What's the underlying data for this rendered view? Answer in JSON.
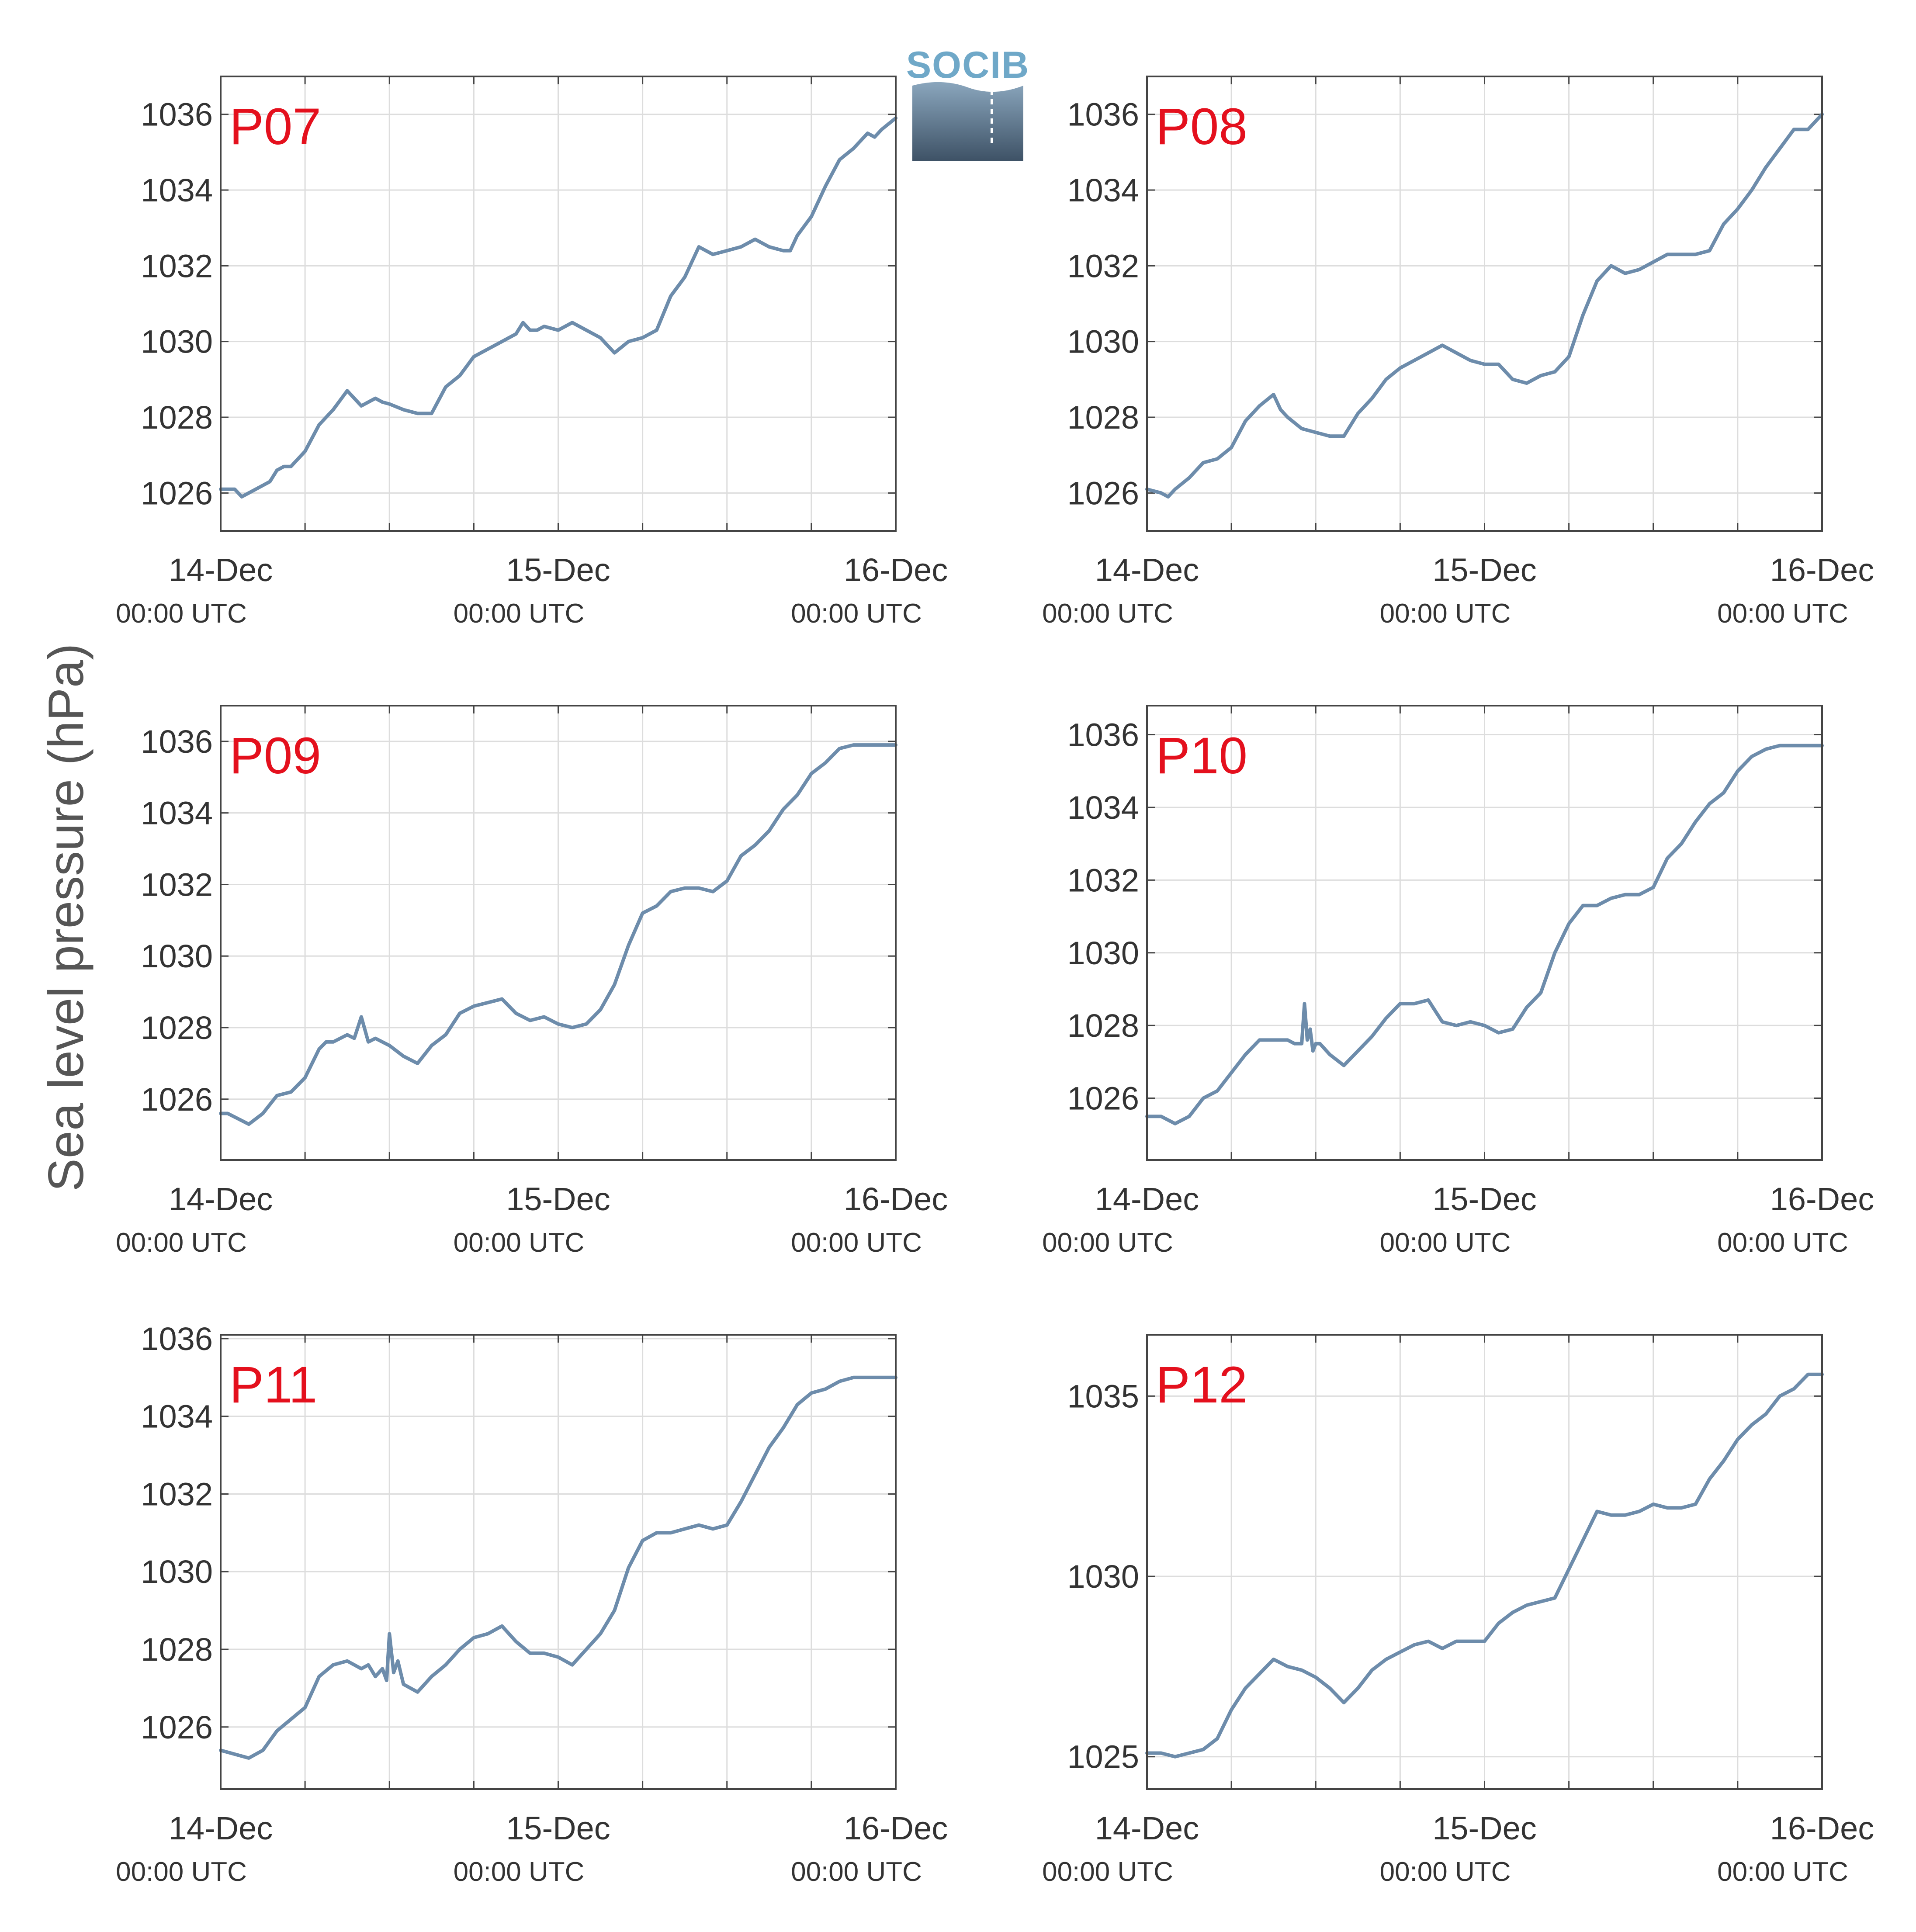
{
  "figure": {
    "ylabel": "Sea level pressure (hPa)",
    "logo": {
      "text": "SOCIB",
      "colors": {
        "text": "#6fa8c8",
        "top": "#8aa6bd",
        "bottom": "#3e5266"
      }
    },
    "line_color": "#6d8cab",
    "label_color": "#e4101d"
  },
  "chart_data": [
    {
      "type": "line",
      "label": "P07",
      "ylim": [
        1025,
        1037
      ],
      "yticks": [
        1026,
        1028,
        1030,
        1032,
        1034,
        1036
      ],
      "xlim": [
        0,
        48
      ],
      "xticks": [
        {
          "pos": 0,
          "day": "14-Dec",
          "time": "00:00 UTC"
        },
        {
          "pos": 24,
          "day": "15-Dec",
          "time": "00:00 UTC"
        },
        {
          "pos": 48,
          "day": "16-Dec",
          "time": "00:00 UTC"
        }
      ],
      "xgrid": [
        0,
        6,
        12,
        18,
        24,
        30,
        36,
        42,
        48
      ],
      "x": [
        0,
        1,
        1.5,
        2,
        3,
        3.5,
        4,
        4.5,
        5,
        6,
        7,
        8,
        9,
        10,
        10.5,
        11,
        11.5,
        12,
        13,
        14,
        15,
        16,
        17,
        18,
        19,
        20,
        21,
        21.5,
        22,
        22.5,
        23,
        24,
        25,
        26,
        27,
        28,
        29,
        30,
        31,
        32,
        33,
        34,
        35,
        36,
        37,
        38,
        39,
        40,
        40.5,
        41,
        42,
        43,
        44,
        45,
        46,
        46.5,
        47,
        48
      ],
      "y": [
        1026.1,
        1026.1,
        1025.9,
        1026,
        1026.2,
        1026.3,
        1026.6,
        1026.7,
        1026.7,
        1027.1,
        1027.8,
        1028.2,
        1028.7,
        1028.3,
        1028.4,
        1028.5,
        1028.4,
        1028.35,
        1028.2,
        1028.1,
        1028.1,
        1028.8,
        1029.1,
        1029.6,
        1029.8,
        1030.0,
        1030.2,
        1030.5,
        1030.3,
        1030.3,
        1030.4,
        1030.3,
        1030.5,
        1030.3,
        1030.1,
        1029.7,
        1030.0,
        1030.1,
        1030.3,
        1031.2,
        1031.7,
        1032.5,
        1032.3,
        1032.4,
        1032.5,
        1032.7,
        1032.5,
        1032.4,
        1032.4,
        1032.8,
        1033.3,
        1034.1,
        1034.8,
        1035.1,
        1035.5,
        1035.4,
        1035.6,
        1035.9
      ]
    },
    {
      "type": "line",
      "label": "P08",
      "ylim": [
        1025,
        1037
      ],
      "yticks": [
        1026,
        1028,
        1030,
        1032,
        1034,
        1036
      ],
      "xlim": [
        0,
        48
      ],
      "xticks": [
        {
          "pos": 0,
          "day": "14-Dec",
          "time": "00:00 UTC"
        },
        {
          "pos": 24,
          "day": "15-Dec",
          "time": "00:00 UTC"
        },
        {
          "pos": 48,
          "day": "16-Dec",
          "time": "00:00 UTC"
        }
      ],
      "xgrid": [
        0,
        6,
        12,
        18,
        24,
        30,
        36,
        42,
        48
      ],
      "x": [
        0,
        1,
        1.5,
        2,
        3,
        4,
        5,
        6,
        7,
        8,
        9,
        9.5,
        10,
        11,
        12,
        13,
        14,
        15,
        16,
        17,
        18,
        19,
        20,
        21,
        21.5,
        22,
        23,
        24,
        25,
        26,
        27,
        28,
        29,
        30,
        31,
        32,
        33,
        34,
        35,
        36,
        37,
        38,
        39,
        40,
        41,
        42,
        43,
        44,
        45,
        46,
        47,
        48
      ],
      "y": [
        1026.1,
        1026.0,
        1025.9,
        1026.1,
        1026.4,
        1026.8,
        1026.9,
        1027.2,
        1027.9,
        1028.3,
        1028.6,
        1028.2,
        1028.0,
        1027.7,
        1027.6,
        1027.5,
        1027.5,
        1028.1,
        1028.5,
        1029.0,
        1029.3,
        1029.5,
        1029.7,
        1029.9,
        1029.8,
        1029.7,
        1029.5,
        1029.4,
        1029.4,
        1029.0,
        1028.9,
        1029.1,
        1029.2,
        1029.6,
        1030.7,
        1031.6,
        1032.0,
        1031.8,
        1031.9,
        1032.1,
        1032.3,
        1032.3,
        1032.3,
        1032.4,
        1033.1,
        1033.5,
        1034.0,
        1034.6,
        1035.1,
        1035.6,
        1035.6,
        1036.0
      ]
    },
    {
      "type": "line",
      "label": "P09",
      "ylim": [
        1024.3,
        1037
      ],
      "yticks": [
        1026,
        1028,
        1030,
        1032,
        1034,
        1036
      ],
      "xlim": [
        0,
        48
      ],
      "xticks": [
        {
          "pos": 0,
          "day": "14-Dec",
          "time": "00:00 UTC"
        },
        {
          "pos": 24,
          "day": "15-Dec",
          "time": "00:00 UTC"
        },
        {
          "pos": 48,
          "day": "16-Dec",
          "time": "00:00 UTC"
        }
      ],
      "xgrid": [
        0,
        6,
        12,
        18,
        24,
        30,
        36,
        42,
        48
      ],
      "x": [
        0,
        0.5,
        1,
        2,
        3,
        4,
        5,
        6,
        7,
        7.5,
        8,
        9,
        9.5,
        10,
        10.5,
        11,
        11.5,
        12,
        13,
        14,
        15,
        16,
        17,
        18,
        19,
        20,
        21,
        21.5,
        22,
        23,
        24,
        25,
        26,
        27,
        28,
        29,
        30,
        31,
        32,
        33,
        34,
        35,
        36,
        37,
        38,
        39,
        40,
        41,
        42,
        43,
        44,
        45,
        46,
        47,
        48
      ],
      "y": [
        1025.6,
        1025.6,
        1025.5,
        1025.3,
        1025.6,
        1026.1,
        1026.2,
        1026.6,
        1027.4,
        1027.6,
        1027.6,
        1027.8,
        1027.7,
        1028.3,
        1027.6,
        1027.7,
        1027.6,
        1027.5,
        1027.2,
        1027.0,
        1027.5,
        1027.8,
        1028.4,
        1028.6,
        1028.7,
        1028.8,
        1028.4,
        1028.3,
        1028.2,
        1028.3,
        1028.1,
        1028.0,
        1028.1,
        1028.5,
        1029.2,
        1030.3,
        1031.2,
        1031.4,
        1031.8,
        1031.9,
        1031.9,
        1031.8,
        1032.1,
        1032.8,
        1033.1,
        1033.5,
        1034.1,
        1034.5,
        1035.1,
        1035.4,
        1035.8,
        1035.9,
        1035.9,
        1035.9,
        1035.9
      ]
    },
    {
      "type": "line",
      "label": "P10",
      "ylim": [
        1024.3,
        1036.8
      ],
      "yticks": [
        1026,
        1028,
        1030,
        1032,
        1034,
        1036
      ],
      "xlim": [
        0,
        48
      ],
      "xticks": [
        {
          "pos": 0,
          "day": "14-Dec",
          "time": "00:00 UTC"
        },
        {
          "pos": 24,
          "day": "15-Dec",
          "time": "00:00 UTC"
        },
        {
          "pos": 48,
          "day": "16-Dec",
          "time": "00:00 UTC"
        }
      ],
      "xgrid": [
        0,
        6,
        12,
        18,
        24,
        30,
        36,
        42,
        48
      ],
      "x": [
        0,
        1,
        2,
        3,
        4,
        5,
        6,
        7,
        8,
        9,
        10,
        10.5,
        11,
        11.2,
        11.4,
        11.6,
        11.8,
        12,
        12.3,
        13,
        14,
        15,
        16,
        17,
        18,
        19,
        20,
        20.5,
        21,
        22,
        23,
        24,
        25,
        26,
        27,
        28,
        29,
        30,
        31,
        32,
        33,
        34,
        35,
        36,
        37,
        38,
        39,
        40,
        41,
        42,
        43,
        44,
        45,
        46,
        47,
        48
      ],
      "y": [
        1025.5,
        1025.5,
        1025.3,
        1025.5,
        1026.0,
        1026.2,
        1026.7,
        1027.2,
        1027.6,
        1027.6,
        1027.6,
        1027.5,
        1027.5,
        1028.6,
        1027.6,
        1027.9,
        1027.3,
        1027.5,
        1027.5,
        1027.2,
        1026.9,
        1027.3,
        1027.7,
        1028.2,
        1028.6,
        1028.6,
        1028.7,
        1028.4,
        1028.1,
        1028.0,
        1028.1,
        1028.0,
        1027.8,
        1027.9,
        1028.5,
        1028.9,
        1030.0,
        1030.8,
        1031.3,
        1031.3,
        1031.5,
        1031.6,
        1031.6,
        1031.8,
        1032.6,
        1033.0,
        1033.6,
        1034.1,
        1034.4,
        1035.0,
        1035.4,
        1035.6,
        1035.7,
        1035.7,
        1035.7,
        1035.7
      ]
    },
    {
      "type": "line",
      "label": "P11",
      "ylim": [
        1024.4,
        1036.1
      ],
      "yticks": [
        1026,
        1028,
        1030,
        1032,
        1034,
        1036
      ],
      "xlim": [
        0,
        48
      ],
      "xticks": [
        {
          "pos": 0,
          "day": "14-Dec",
          "time": "00:00 UTC"
        },
        {
          "pos": 24,
          "day": "15-Dec",
          "time": "00:00 UTC"
        },
        {
          "pos": 48,
          "day": "16-Dec",
          "time": "00:00 UTC"
        }
      ],
      "xgrid": [
        0,
        6,
        12,
        18,
        24,
        30,
        36,
        42,
        48
      ],
      "x": [
        0,
        1,
        2,
        3,
        4,
        5,
        6,
        7,
        8,
        9,
        10,
        10.5,
        11,
        11.5,
        11.8,
        12,
        12.3,
        12.6,
        13,
        14,
        15,
        16,
        17,
        18,
        19,
        20,
        21,
        22,
        23,
        24,
        25,
        26,
        27,
        28,
        29,
        30,
        31,
        32,
        33,
        34,
        35,
        36,
        37,
        38,
        39,
        40,
        41,
        42,
        43,
        44,
        45,
        46,
        47,
        48
      ],
      "y": [
        1025.4,
        1025.3,
        1025.2,
        1025.4,
        1025.9,
        1026.2,
        1026.5,
        1027.3,
        1027.6,
        1027.7,
        1027.5,
        1027.6,
        1027.3,
        1027.5,
        1027.2,
        1028.4,
        1027.4,
        1027.7,
        1027.1,
        1026.9,
        1027.3,
        1027.6,
        1028.0,
        1028.3,
        1028.4,
        1028.6,
        1028.2,
        1027.9,
        1027.9,
        1027.8,
        1027.6,
        1028.0,
        1028.4,
        1029.0,
        1030.1,
        1030.8,
        1031.0,
        1031.0,
        1031.1,
        1031.2,
        1031.1,
        1031.2,
        1031.8,
        1032.5,
        1033.2,
        1033.7,
        1034.3,
        1034.6,
        1034.7,
        1034.9,
        1035.0,
        1035.0,
        1035.0,
        1035.0
      ]
    },
    {
      "type": "line",
      "label": "P12",
      "ylim": [
        1024.1,
        1036.7
      ],
      "yticks": [
        1025,
        1030,
        1035
      ],
      "xlim": [
        0,
        48
      ],
      "xticks": [
        {
          "pos": 0,
          "day": "14-Dec",
          "time": "00:00 UTC"
        },
        {
          "pos": 24,
          "day": "15-Dec",
          "time": "00:00 UTC"
        },
        {
          "pos": 48,
          "day": "16-Dec",
          "time": "00:00 UTC"
        }
      ],
      "xgrid": [
        0,
        6,
        12,
        18,
        24,
        30,
        36,
        42,
        48
      ],
      "x": [
        0,
        1,
        2,
        3,
        4,
        5,
        6,
        7,
        8,
        9,
        9.5,
        10,
        11,
        12,
        13,
        14,
        15,
        16,
        17,
        18,
        19,
        20,
        21,
        22,
        23,
        24,
        25,
        26,
        27,
        28,
        29,
        30,
        31,
        32,
        33,
        34,
        35,
        36,
        37,
        38,
        39,
        40,
        41,
        42,
        43,
        44,
        45,
        46,
        47,
        48
      ],
      "y": [
        1025.1,
        1025.1,
        1025.0,
        1025.1,
        1025.2,
        1025.5,
        1026.3,
        1026.9,
        1027.3,
        1027.7,
        1027.6,
        1027.5,
        1027.4,
        1027.2,
        1026.9,
        1026.5,
        1026.9,
        1027.4,
        1027.7,
        1027.9,
        1028.1,
        1028.2,
        1028.0,
        1028.2,
        1028.2,
        1028.2,
        1028.7,
        1029.0,
        1029.2,
        1029.3,
        1029.4,
        1030.2,
        1031.0,
        1031.8,
        1031.7,
        1031.7,
        1031.8,
        1032.0,
        1031.9,
        1031.9,
        1032.0,
        1032.7,
        1033.2,
        1033.8,
        1034.2,
        1034.5,
        1035.0,
        1035.2,
        1035.6,
        1035.6
      ]
    }
  ]
}
